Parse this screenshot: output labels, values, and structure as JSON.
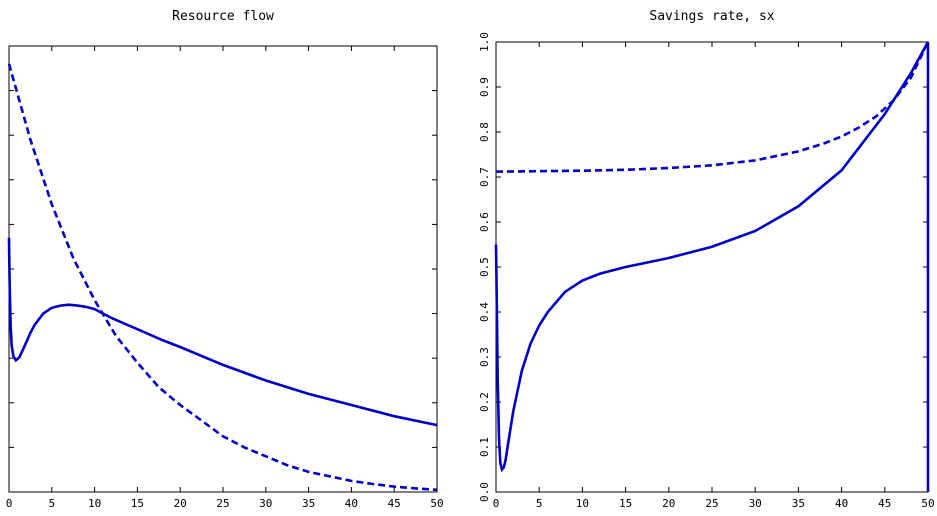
{
  "chart_data": [
    {
      "type": "line",
      "title": "Resource flow",
      "xlabel": "",
      "ylabel": "",
      "xlim": [
        0,
        50
      ],
      "ylim": [
        0,
        1
      ],
      "x_ticks": [
        0,
        5,
        10,
        15,
        20,
        25,
        30,
        35,
        40,
        45,
        50
      ],
      "x_tick_labels": [
        "0",
        "5",
        "10",
        "15",
        "20",
        "25",
        "30",
        "35",
        "40",
        "45",
        "50"
      ],
      "y_ticks": [
        0.1,
        0.2,
        0.3,
        0.4,
        0.5,
        0.6,
        0.7,
        0.8,
        0.9
      ],
      "y_tick_labels": [],
      "grid": false,
      "series": [
        {
          "style": "solid",
          "color": "#0000c8",
          "x": [
            0,
            0.05,
            0.1,
            0.2,
            0.3,
            0.5,
            0.8,
            1.2,
            1.6,
            2,
            2.5,
            3,
            4,
            5,
            6,
            7,
            8,
            9,
            10,
            12,
            15,
            18,
            20,
            25,
            30,
            35,
            40,
            45,
            50
          ],
          "y": [
            0.57,
            0.5,
            0.44,
            0.37,
            0.33,
            0.305,
            0.295,
            0.302,
            0.318,
            0.335,
            0.357,
            0.375,
            0.4,
            0.413,
            0.418,
            0.42,
            0.418,
            0.415,
            0.41,
            0.39,
            0.365,
            0.34,
            0.325,
            0.285,
            0.25,
            0.22,
            0.195,
            0.17,
            0.15
          ]
        },
        {
          "style": "dashed",
          "color": "#0000c8",
          "x": [
            0,
            2.5,
            5,
            7.5,
            10,
            12.5,
            15,
            17.5,
            20,
            22.5,
            25,
            27.5,
            30,
            32.5,
            35,
            37.5,
            40,
            42.5,
            45,
            47.5,
            50
          ],
          "y": [
            0.96,
            0.79,
            0.645,
            0.525,
            0.43,
            0.35,
            0.29,
            0.235,
            0.195,
            0.16,
            0.125,
            0.1,
            0.08,
            0.06,
            0.045,
            0.035,
            0.025,
            0.018,
            0.012,
            0.008,
            0.005
          ]
        }
      ]
    },
    {
      "type": "line",
      "title": "Savings rate, sx",
      "xlabel": "",
      "ylabel": "",
      "xlim": [
        0,
        50
      ],
      "ylim": [
        0,
        1
      ],
      "x_ticks": [
        0,
        5,
        10,
        15,
        20,
        25,
        30,
        35,
        40,
        45,
        50
      ],
      "x_tick_labels": [
        "0",
        "5",
        "10",
        "15",
        "20",
        "25",
        "30",
        "35",
        "40",
        "45",
        "50"
      ],
      "y_ticks": [
        0,
        0.1,
        0.2,
        0.3,
        0.4,
        0.5,
        0.6,
        0.7,
        0.8,
        0.9,
        1
      ],
      "y_tick_labels": [
        "0.0",
        "0.1",
        "0.2",
        "0.3",
        "0.4",
        "0.5",
        "0.6",
        "0.7",
        "0.8",
        "0.9",
        "1.0"
      ],
      "grid": false,
      "series": [
        {
          "style": "solid",
          "color": "#0000c8",
          "x": [
            0,
            0.1,
            0.2,
            0.35,
            0.5,
            0.7,
            0.9,
            1.1,
            1.5,
            2,
            3,
            4,
            5,
            6,
            8,
            10,
            12,
            15,
            20,
            25,
            30,
            35,
            40,
            45,
            48,
            50
          ],
          "y": [
            0.55,
            0.4,
            0.25,
            0.12,
            0.065,
            0.05,
            0.055,
            0.07,
            0.12,
            0.18,
            0.27,
            0.33,
            0.37,
            0.4,
            0.445,
            0.47,
            0.485,
            0.5,
            0.52,
            0.545,
            0.58,
            0.635,
            0.715,
            0.84,
            0.93,
            1.0
          ]
        },
        {
          "style": "dashed",
          "color": "#0000c8",
          "x": [
            0,
            5,
            10,
            15,
            20,
            25,
            30,
            35,
            38,
            40,
            42,
            44,
            46,
            48,
            50
          ],
          "y": [
            0.712,
            0.713,
            0.714,
            0.716,
            0.72,
            0.726,
            0.737,
            0.757,
            0.775,
            0.79,
            0.81,
            0.835,
            0.87,
            0.92,
            1.0
          ]
        },
        {
          "style": "solid",
          "color": "#0000c8",
          "x": [
            50,
            50
          ],
          "y": [
            1.0,
            0.0
          ]
        }
      ]
    }
  ]
}
